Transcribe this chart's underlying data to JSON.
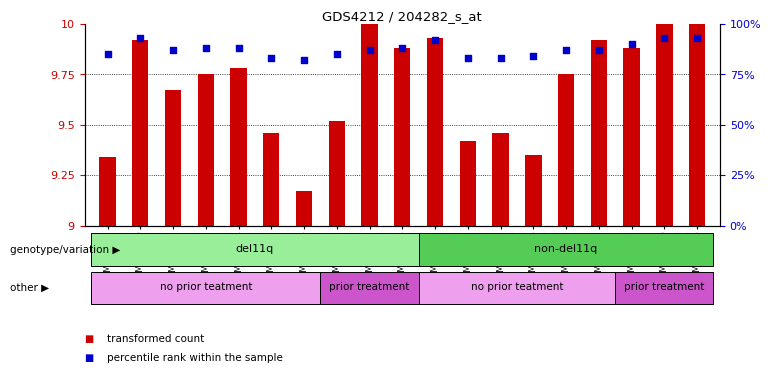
{
  "title": "GDS4212 / 204282_s_at",
  "samples": [
    "GSM652229",
    "GSM652230",
    "GSM652232",
    "GSM652233",
    "GSM652234",
    "GSM652235",
    "GSM652236",
    "GSM652231",
    "GSM652237",
    "GSM652238",
    "GSM652241",
    "GSM652242",
    "GSM652243",
    "GSM652244",
    "GSM652245",
    "GSM652247",
    "GSM652239",
    "GSM652240",
    "GSM652246"
  ],
  "red_values": [
    9.34,
    9.92,
    9.67,
    9.75,
    9.78,
    9.46,
    9.17,
    9.52,
    10.0,
    9.88,
    9.93,
    9.42,
    9.46,
    9.35,
    9.75,
    9.92,
    9.88,
    10.0,
    10.0
  ],
  "blue_values": [
    85,
    93,
    87,
    88,
    88,
    83,
    82,
    85,
    87,
    88,
    92,
    83,
    83,
    84,
    87,
    87,
    90,
    93,
    93
  ],
  "ylim_left": [
    9.0,
    10.0
  ],
  "ylim_right": [
    0,
    100
  ],
  "yticks_left": [
    9.0,
    9.25,
    9.5,
    9.75,
    10.0
  ],
  "ytick_labels_left": [
    "9",
    "9.25",
    "9.5",
    "9.75",
    "10"
  ],
  "yticks_right": [
    0,
    25,
    50,
    75,
    100
  ],
  "ytick_labels_right": [
    "0%",
    "25%",
    "50%",
    "75%",
    "100%"
  ],
  "bar_color": "#cc0000",
  "dot_color": "#0000cc",
  "title_color": "#000000",
  "genotype_groups": [
    {
      "label": "del11q",
      "start": 0,
      "end": 9,
      "color": "#aaeea a"
    },
    {
      "label": "non-del11q",
      "start": 10,
      "end": 18,
      "color": "#55cc55"
    }
  ],
  "other_groups": [
    {
      "label": "no prior teatment",
      "start": 0,
      "end": 6,
      "color": "#dd88ee"
    },
    {
      "label": "prior treatment",
      "start": 7,
      "end": 9,
      "color": "#cc44cc"
    },
    {
      "label": "no prior teatment",
      "start": 10,
      "end": 15,
      "color": "#dd88ee"
    },
    {
      "label": "prior treatment",
      "start": 16,
      "end": 18,
      "color": "#cc44cc"
    }
  ],
  "legend_items": [
    {
      "label": "transformed count",
      "color": "#cc0000"
    },
    {
      "label": "percentile rank within the sample",
      "color": "#0000cc"
    }
  ]
}
